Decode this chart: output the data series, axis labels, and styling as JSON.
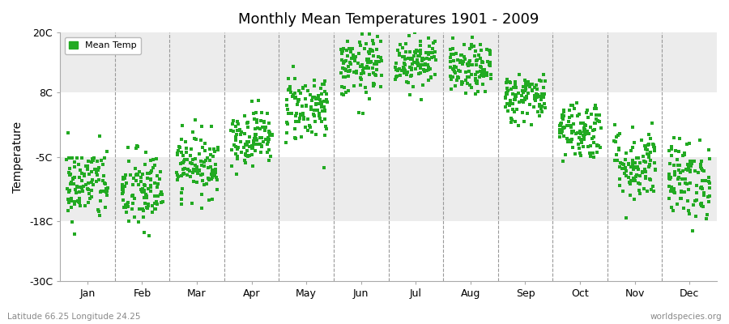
{
  "title": "Monthly Mean Temperatures 1901 - 2009",
  "ylabel": "Temperature",
  "footnote_left": "Latitude 66.25 Longitude 24.25",
  "footnote_right": "worldspecies.org",
  "legend_label": "Mean Temp",
  "dot_color": "#22AA22",
  "background_color": "#FFFFFF",
  "plot_bg_color": "#F0F0F0",
  "band_colors": [
    "#FFFFFF",
    "#ECECEC"
  ],
  "ylim": [
    -30,
    20
  ],
  "yticks": [
    -30,
    -18,
    -5,
    8,
    20
  ],
  "ytick_labels": [
    "-30C",
    "-18C",
    "-5C",
    "8C",
    "20C"
  ],
  "months": [
    "Jan",
    "Feb",
    "Mar",
    "Apr",
    "May",
    "Jun",
    "Jul",
    "Aug",
    "Sep",
    "Oct",
    "Nov",
    "Dec"
  ],
  "month_means": [
    -10.5,
    -12.0,
    -6.5,
    -1.0,
    5.0,
    13.0,
    14.5,
    12.5,
    7.0,
    0.5,
    -6.5,
    -9.5
  ],
  "month_stds": [
    3.8,
    4.2,
    3.2,
    2.8,
    3.5,
    3.2,
    2.8,
    2.5,
    2.5,
    3.0,
    3.8,
    4.0
  ],
  "n_years": 109,
  "seed": 42,
  "marker_size": 8,
  "dpi": 100,
  "figsize": [
    9.0,
    4.0
  ]
}
